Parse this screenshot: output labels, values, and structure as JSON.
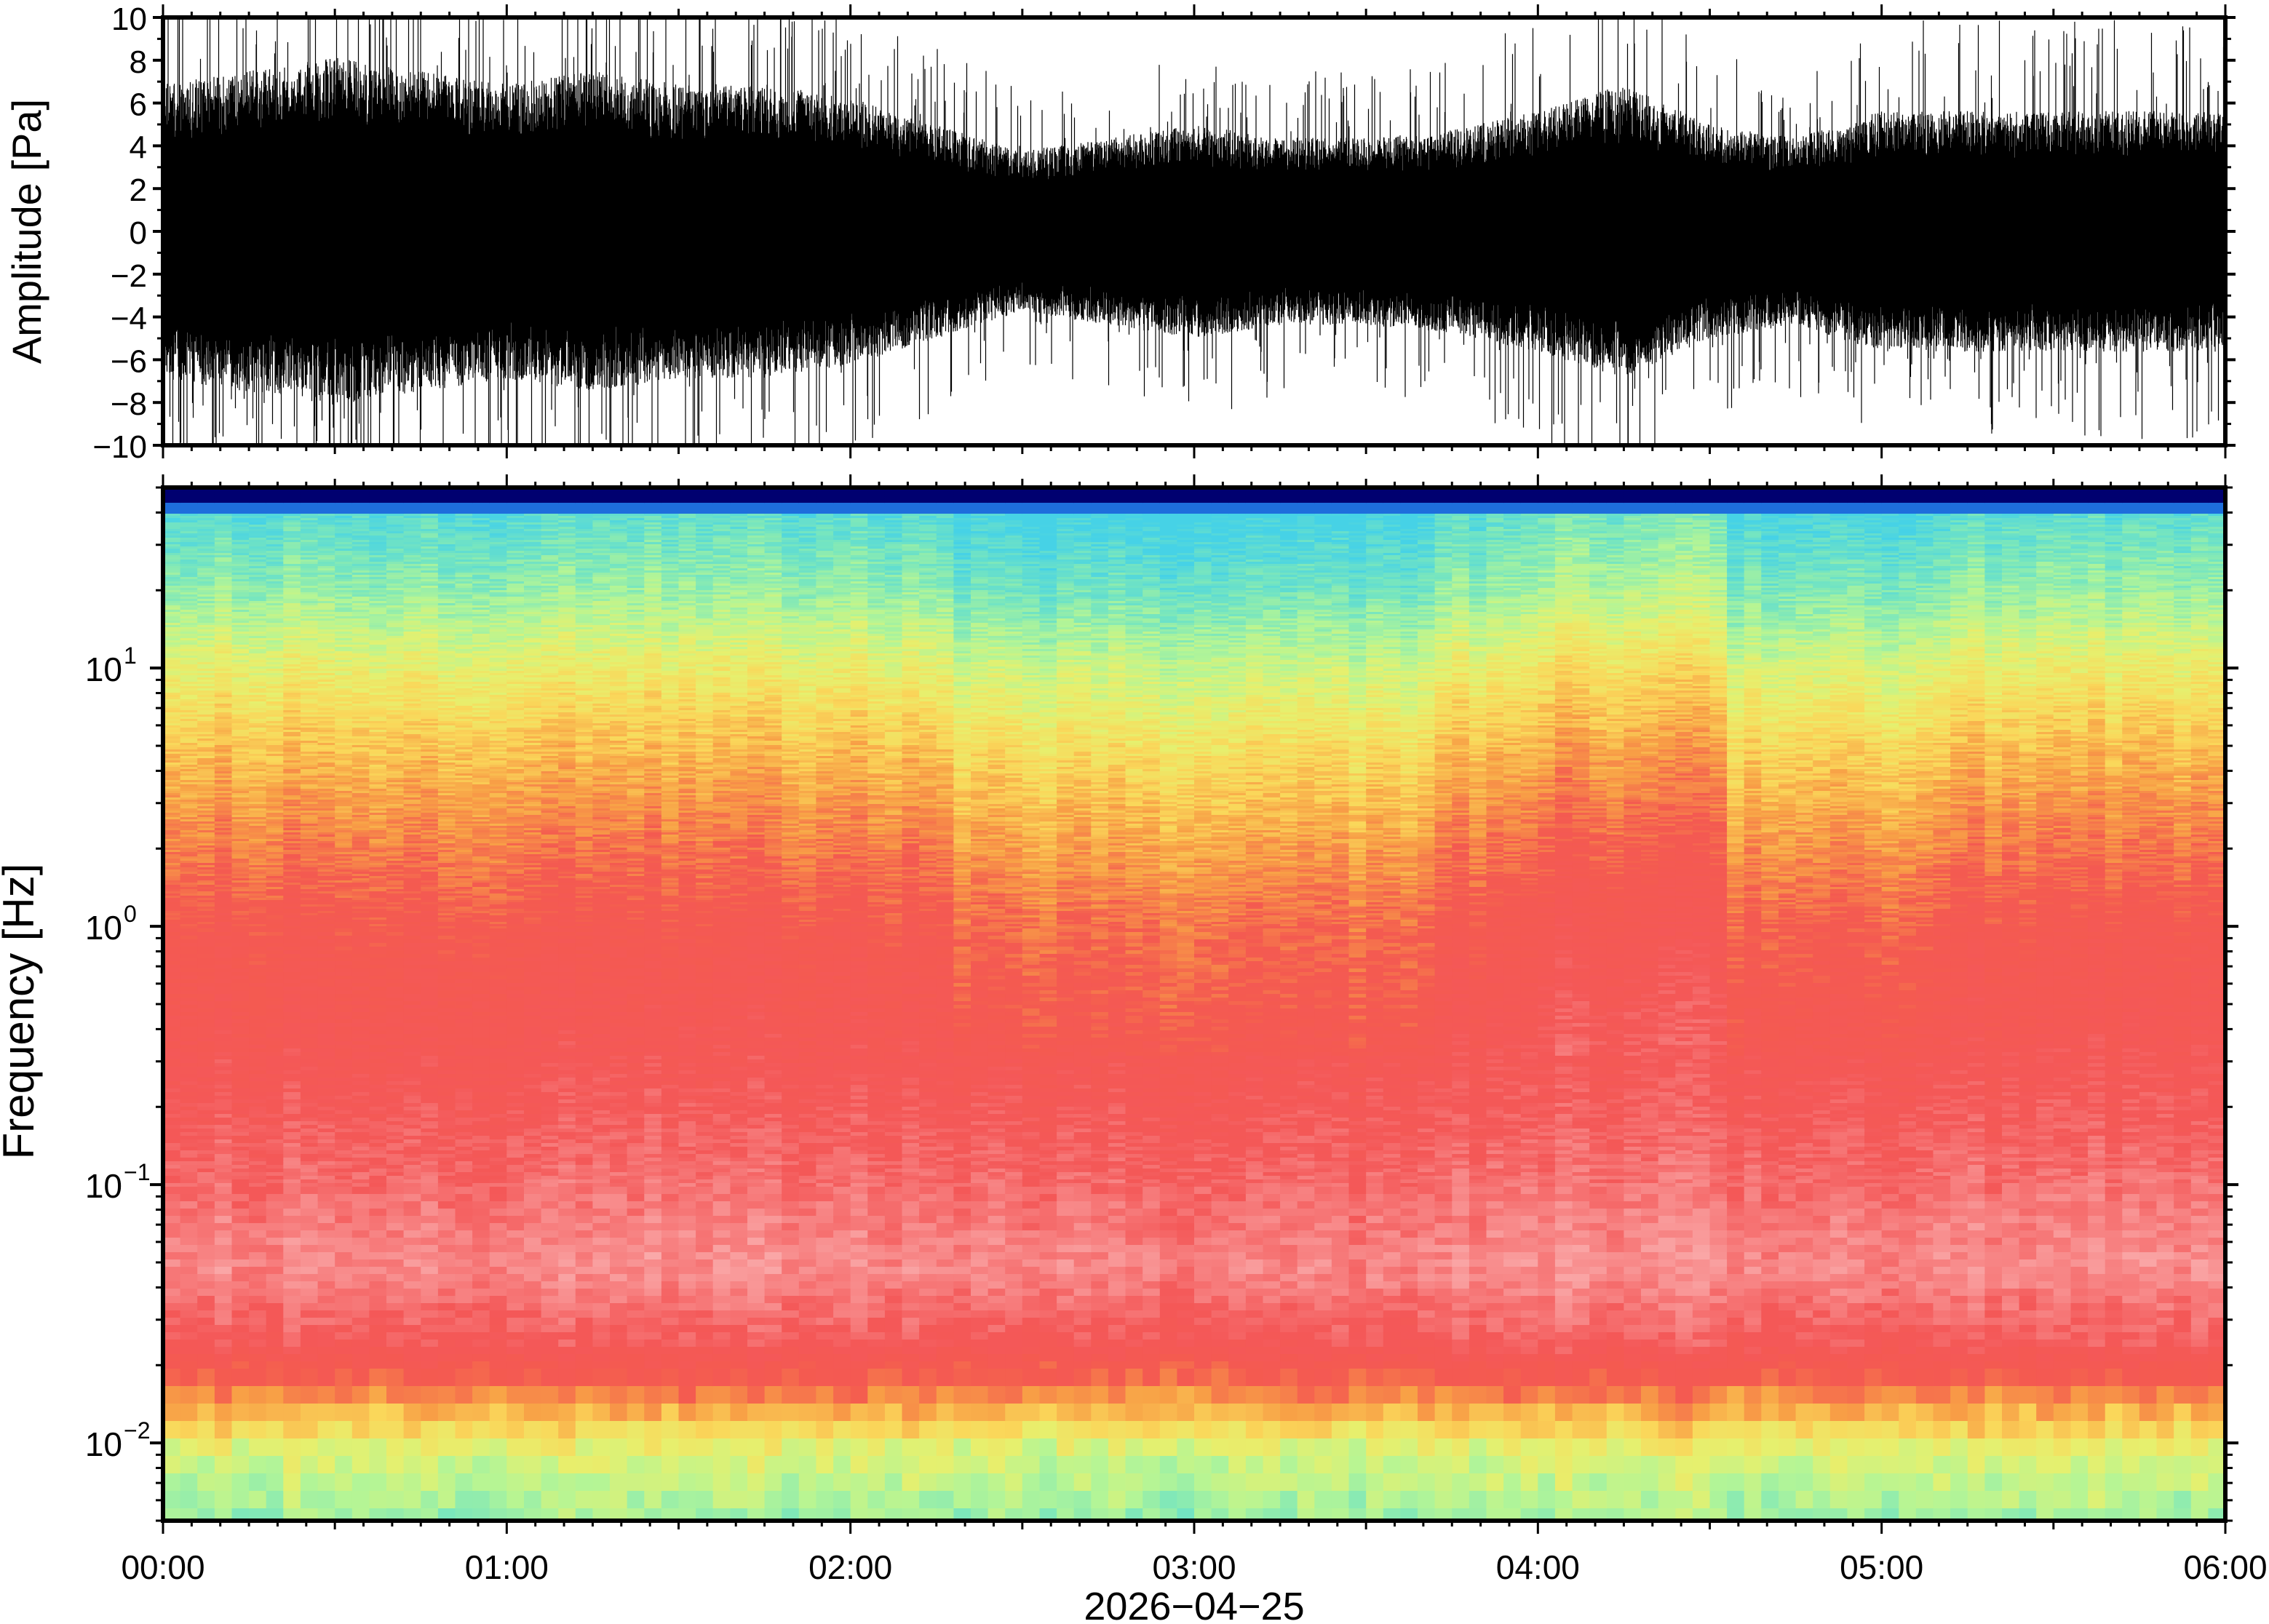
{
  "chart_data": [
    {
      "type": "line",
      "panel": "waveform",
      "ylabel": "Amplitude [Pa]",
      "ylim": [
        -10,
        10
      ],
      "yticks": [
        -10,
        -8,
        -6,
        -4,
        -2,
        0,
        2,
        4,
        6,
        8,
        10
      ],
      "ytick_labels": [
        "−10",
        "−8",
        "−6",
        "−4",
        "−2",
        "0",
        "2",
        "4",
        "6",
        "8",
        "10"
      ],
      "xlim_hours": [
        0,
        6
      ],
      "series": [
        {
          "values_hours": [
            0,
            0.25,
            0.5,
            0.75,
            1.0,
            1.25,
            1.5,
            1.75,
            2.0,
            2.25,
            2.5,
            2.75,
            3.0,
            3.25,
            3.5,
            3.75,
            4.0,
            4.25,
            4.5,
            4.75,
            5.0,
            5.25,
            5.5,
            5.75,
            6.0
          ],
          "envelope_pa": [
            5.5,
            6.0,
            6.5,
            6.0,
            5.5,
            6.0,
            5.5,
            5.5,
            5.0,
            4.0,
            3.0,
            3.5,
            4.0,
            3.5,
            3.5,
            3.8,
            4.5,
            5.5,
            4.0,
            3.5,
            4.5,
            4.5,
            4.5,
            4.5,
            4.5
          ]
        }
      ]
    },
    {
      "type": "heatmap",
      "panel": "spectrogram",
      "ylabel": "Frequency [Hz]",
      "xlabel": "2026−04−25",
      "ylim_hz": [
        0.005,
        50
      ],
      "y_scale": "log",
      "yticks": [
        0.01,
        0.1,
        1,
        10
      ],
      "ytick_labels": [
        {
          "base": "10",
          "exp": "−2"
        },
        {
          "base": "10",
          "exp": "−1"
        },
        {
          "base": "10",
          "exp": "0"
        },
        {
          "base": "10",
          "exp": "1"
        }
      ],
      "xlim_hours": [
        0,
        6
      ],
      "xticks_hours": [
        0,
        1,
        2,
        3,
        4,
        5,
        6
      ],
      "xtick_labels": [
        "00:00",
        "01:00",
        "02:00",
        "03:00",
        "04:00",
        "05:00",
        "06:00"
      ],
      "colormap": "rainbow",
      "colors": {
        "low_freq_floor": "#9ef0a0",
        "mid_low": "#f7d25a",
        "mid": "#f45a5a",
        "pink_band": "#f8a0a0",
        "high_freq": "#e8e060",
        "upper": "#5ad8e8",
        "top_edge": "#000060"
      }
    }
  ]
}
